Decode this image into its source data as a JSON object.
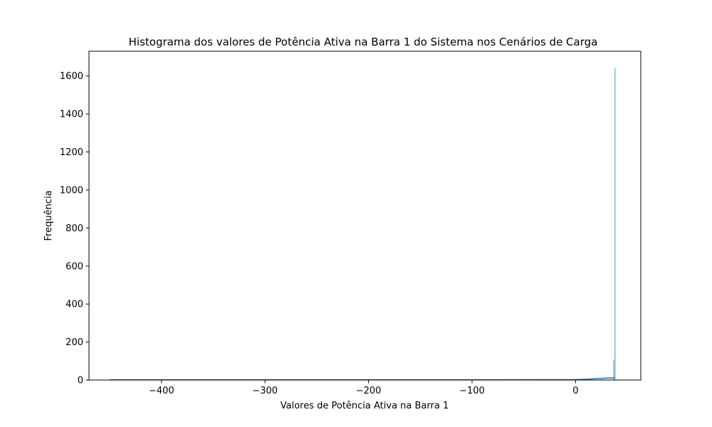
{
  "chart_data": {
    "type": "bar",
    "title": "Histograma dos valores de Potência Ativa na Barra 1 do Sistema nos Cenários de Carga",
    "xlabel": "Valores de Potência Ativa na Barra 1",
    "ylabel": "Frequência",
    "xlim": [
      -470,
      63
    ],
    "ylim": [
      0,
      1730
    ],
    "x_ticks": [
      -400,
      -300,
      -200,
      -100,
      0
    ],
    "x_tick_labels": [
      "−400",
      "−300",
      "−200",
      "−100",
      "0"
    ],
    "y_ticks": [
      0,
      200,
      400,
      600,
      800,
      1000,
      1200,
      1400,
      1600
    ],
    "y_tick_labels": [
      "0",
      "200",
      "400",
      "600",
      "800",
      "1000",
      "1200",
      "1400",
      "1600"
    ],
    "grid": false,
    "legend": "none",
    "colors": {
      "bar": "#1f77b4",
      "kde": "#1f77b4",
      "axes": "#000000"
    },
    "histogram_bars": [
      {
        "x0": -450,
        "x1": -440,
        "count": 1
      },
      {
        "x0": 36.5,
        "x1": 37.5,
        "count": 105
      },
      {
        "x0": 37.5,
        "x1": 38.5,
        "count": 1640
      }
    ],
    "kde": {
      "x": [
        -450,
        -400,
        -300,
        -200,
        -100,
        0,
        10,
        20,
        30,
        36,
        38
      ],
      "y": [
        1,
        1,
        1,
        1,
        1,
        2,
        4,
        7,
        10,
        11,
        11
      ]
    }
  }
}
